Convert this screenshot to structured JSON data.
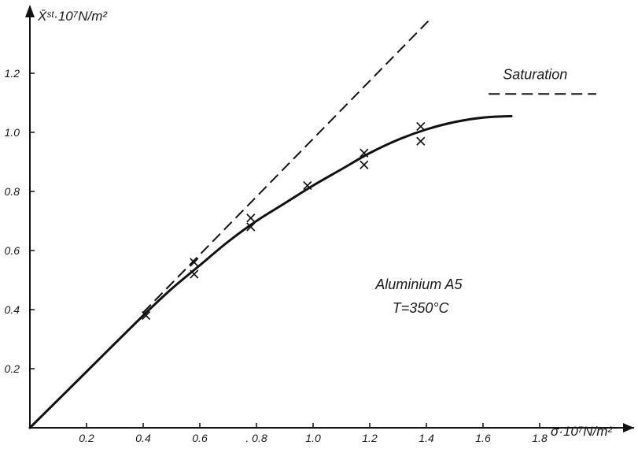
{
  "chart_data": {
    "type": "scatter",
    "title": "",
    "xlabel": "σ̄·10⁷N/m²",
    "ylabel": "X̄ˢᵗ·10⁷N/m²",
    "xlim": [
      0,
      2.0
    ],
    "ylim": [
      0,
      1.35
    ],
    "x_ticks": [
      0.2,
      0.4,
      0.6,
      0.8,
      1.0,
      1.2,
      1.4,
      1.6,
      1.8
    ],
    "x_tick_labels": [
      "0.2",
      "0.4",
      "0.6",
      ". 0.8",
      "1.0",
      "1.2",
      "1.4",
      "1.6",
      "1.8"
    ],
    "y_ticks": [
      0.2,
      0.4,
      0.6,
      0.8,
      1.0,
      1.2
    ],
    "y_tick_labels": [
      "0.2",
      "0.4",
      "0.6",
      "0.8",
      "1.0",
      "1.2"
    ],
    "grid": false,
    "series": [
      {
        "style": "markers-x",
        "points": [
          {
            "x": 0.41,
            "y": 0.38
          },
          {
            "x": 0.58,
            "y": 0.56
          },
          {
            "x": 0.58,
            "y": 0.52
          },
          {
            "x": 0.78,
            "y": 0.71
          },
          {
            "x": 0.78,
            "y": 0.68
          },
          {
            "x": 0.98,
            "y": 0.82
          },
          {
            "x": 1.18,
            "y": 0.93
          },
          {
            "x": 1.18,
            "y": 0.89
          },
          {
            "x": 1.38,
            "y": 1.02
          },
          {
            "x": 1.38,
            "y": 0.97
          }
        ]
      },
      {
        "style": "solid-curve",
        "points": [
          {
            "x": 0.0,
            "y": 0.0
          },
          {
            "x": 0.2,
            "y": 0.19
          },
          {
            "x": 0.4,
            "y": 0.38
          },
          {
            "x": 0.5,
            "y": 0.47
          },
          {
            "x": 0.6,
            "y": 0.55
          },
          {
            "x": 0.7,
            "y": 0.63
          },
          {
            "x": 0.8,
            "y": 0.7
          },
          {
            "x": 0.9,
            "y": 0.76
          },
          {
            "x": 1.0,
            "y": 0.82
          },
          {
            "x": 1.1,
            "y": 0.875
          },
          {
            "x": 1.2,
            "y": 0.93
          },
          {
            "x": 1.3,
            "y": 0.975
          },
          {
            "x": 1.4,
            "y": 1.01
          },
          {
            "x": 1.5,
            "y": 1.035
          },
          {
            "x": 1.6,
            "y": 1.05
          },
          {
            "x": 1.7,
            "y": 1.055
          }
        ]
      },
      {
        "style": "dashed-line",
        "points": [
          {
            "x": 0.4,
            "y": 0.39
          },
          {
            "x": 1.41,
            "y": 1.38
          }
        ]
      },
      {
        "style": "dashed-line",
        "points": [
          {
            "x": 1.62,
            "y": 1.13
          },
          {
            "x": 2.0,
            "y": 1.13
          }
        ]
      }
    ],
    "annotations": [
      {
        "text": "Saturation",
        "x": 1.67,
        "y": 1.18
      },
      {
        "text": "Aluminium  A5",
        "x": 1.22,
        "y": 0.47
      },
      {
        "text": "T=350°C",
        "x": 1.28,
        "y": 0.39
      }
    ]
  }
}
